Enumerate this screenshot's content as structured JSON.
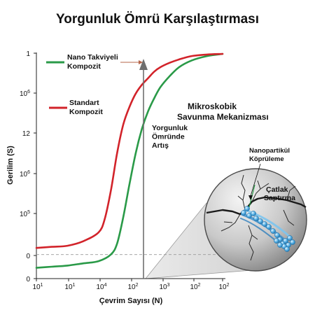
{
  "chart_data": {
    "type": "line",
    "title": "Yorgunluk Ömrü Karşılaştırması",
    "xlabel": "Çevrim Sayısı (N)",
    "ylabel": "Gerilim (S)",
    "x_tick_labels": [
      {
        "base": "10",
        "exp": "1"
      },
      {
        "base": "10",
        "exp": "1"
      },
      {
        "base": "10",
        "exp": "4"
      },
      {
        "base": "10",
        "exp": "2"
      },
      {
        "base": "10",
        "exp": "3"
      },
      {
        "base": "10",
        "exp": "2"
      },
      {
        "base": "10",
        "exp": "2"
      }
    ],
    "y_tick_labels": [
      {
        "base": "0",
        "exp": ""
      },
      {
        "base": "0",
        "exp": ""
      },
      {
        "base": "10",
        "exp": "5"
      },
      {
        "base": "10",
        "exp": "6"
      },
      {
        "base": "12",
        "exp": ""
      },
      {
        "base": "10",
        "exp": "6"
      },
      {
        "base": "1",
        "exp": ""
      }
    ],
    "x_position_range": [
      0,
      6
    ],
    "y_position_range": [
      0,
      1
    ],
    "grid": false,
    "series": [
      {
        "name": "Nano Takviyeli Kompozit",
        "color": "#2a9a48",
        "x": [
          0,
          0.5,
          1,
          1.5,
          2,
          2.4,
          2.6,
          2.8,
          3.0,
          3.2,
          3.4,
          3.6,
          3.8,
          4.0,
          4.3,
          4.6,
          5.0,
          5.5,
          6.0
        ],
        "y": [
          0.03,
          0.035,
          0.04,
          0.05,
          0.06,
          0.09,
          0.14,
          0.26,
          0.41,
          0.55,
          0.66,
          0.74,
          0.8,
          0.85,
          0.9,
          0.94,
          0.97,
          0.99,
          1.0
        ]
      },
      {
        "name": "Standart Kompozit",
        "color": "#d2232a",
        "x": [
          0,
          0.5,
          1,
          1.5,
          2,
          2.2,
          2.4,
          2.6,
          2.8,
          3.0,
          3.2,
          3.4,
          3.6,
          3.8,
          4.0,
          4.3,
          4.6,
          5.0,
          5.5,
          6.0
        ],
        "y": [
          0.12,
          0.125,
          0.13,
          0.15,
          0.19,
          0.25,
          0.38,
          0.55,
          0.68,
          0.76,
          0.82,
          0.86,
          0.89,
          0.92,
          0.94,
          0.96,
          0.975,
          0.99,
          0.997,
          1.0
        ]
      }
    ],
    "reference_line_y": 0.09,
    "annotations": {
      "fatigue_increase": "Yorgunluk Ömründe Artış",
      "inset_title": "Mikroskobik Savunma Mekanizması",
      "bridging": "Nanopartikül Köprüleme",
      "deflection": "Çatlak Saptırma"
    },
    "legend_placement": "top-left"
  }
}
